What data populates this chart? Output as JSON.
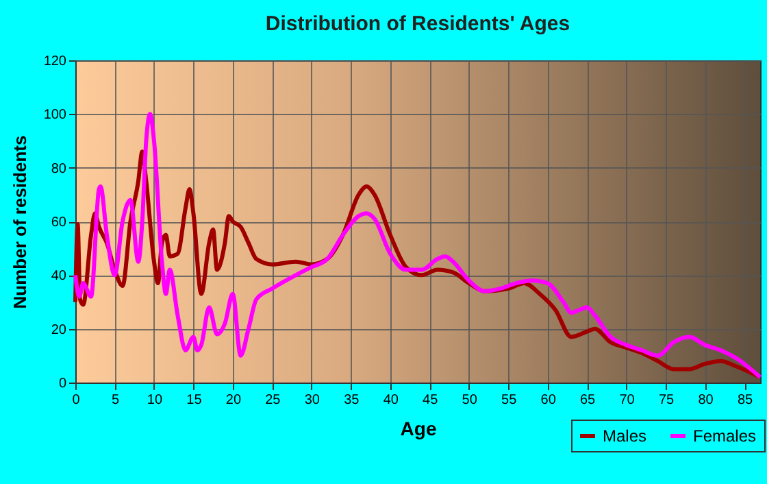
{
  "chart_data": {
    "type": "line",
    "title": "Distribution of Residents' Ages",
    "xlabel": "Age",
    "ylabel": "Number of residents",
    "xlim": [
      0,
      87
    ],
    "xticks": [
      0,
      5,
      10,
      15,
      20,
      25,
      30,
      35,
      40,
      45,
      50,
      55,
      60,
      65,
      70,
      75,
      80,
      85
    ],
    "ylim": [
      0,
      120
    ],
    "yticks": [
      0,
      20,
      40,
      60,
      80,
      100,
      120
    ],
    "grid": true,
    "legend": "bottom right",
    "marker": "none",
    "line_style": "solid",
    "series": [
      {
        "name": "Males",
        "color": "#a00000",
        "x": [
          0,
          0.3,
          0.6,
          1,
          2,
          2.5,
          3,
          4,
          5,
          6,
          7,
          8,
          8.5,
          9,
          10,
          10.5,
          11,
          11.5,
          12,
          13,
          14,
          14.5,
          15,
          16,
          17,
          17.5,
          18,
          19,
          19.5,
          20,
          21,
          22,
          23,
          25,
          28,
          30,
          32,
          34,
          36,
          37,
          38,
          40,
          42,
          44,
          46,
          48,
          50,
          52,
          55,
          57,
          59,
          61,
          63,
          65,
          66,
          68,
          70,
          72,
          74,
          76,
          78,
          80,
          82,
          84,
          87
        ],
        "values": [
          30,
          59,
          31,
          29,
          55,
          63,
          58,
          52,
          42,
          36,
          60,
          75,
          86,
          75,
          45,
          37,
          52,
          55,
          47,
          48,
          65,
          72,
          63,
          33,
          52,
          57,
          42,
          52,
          62,
          60,
          58,
          52,
          46,
          44,
          45,
          44,
          46,
          55,
          70,
          73,
          70,
          55,
          43,
          40,
          42,
          41,
          37,
          34,
          35,
          37,
          33,
          27,
          17,
          19,
          20,
          15,
          13,
          11,
          8,
          5,
          5,
          7,
          8,
          6,
          2
        ]
      },
      {
        "name": "Females",
        "color": "#ff00ff",
        "x": [
          0,
          0.5,
          1,
          2,
          3,
          3.2,
          4,
          5,
          6,
          7,
          8,
          8.5,
          9,
          9.5,
          10,
          11,
          11.5,
          12,
          13,
          14,
          15,
          15.5,
          16,
          17,
          18,
          19,
          20,
          21,
          22,
          23,
          25,
          28,
          30,
          32,
          34,
          36,
          37,
          38,
          40,
          42,
          44,
          46,
          47,
          48,
          50,
          52,
          54,
          56,
          58,
          60,
          62,
          63,
          64,
          65,
          66,
          68,
          70,
          72,
          74,
          76,
          78,
          80,
          82,
          84,
          87
        ],
        "values": [
          40,
          32,
          37,
          32,
          72,
          73,
          55,
          40,
          60,
          68,
          45,
          60,
          90,
          100,
          90,
          45,
          33,
          42,
          25,
          12,
          17,
          12,
          14,
          28,
          18,
          22,
          33,
          10,
          20,
          31,
          35,
          40,
          43,
          46,
          55,
          62,
          63,
          61,
          48,
          42,
          42,
          46,
          47,
          45,
          38,
          34,
          35,
          37,
          38,
          37,
          30,
          26,
          27,
          28,
          25,
          17,
          14,
          12,
          10,
          15,
          17,
          14,
          12,
          9,
          2
        ]
      }
    ]
  }
}
